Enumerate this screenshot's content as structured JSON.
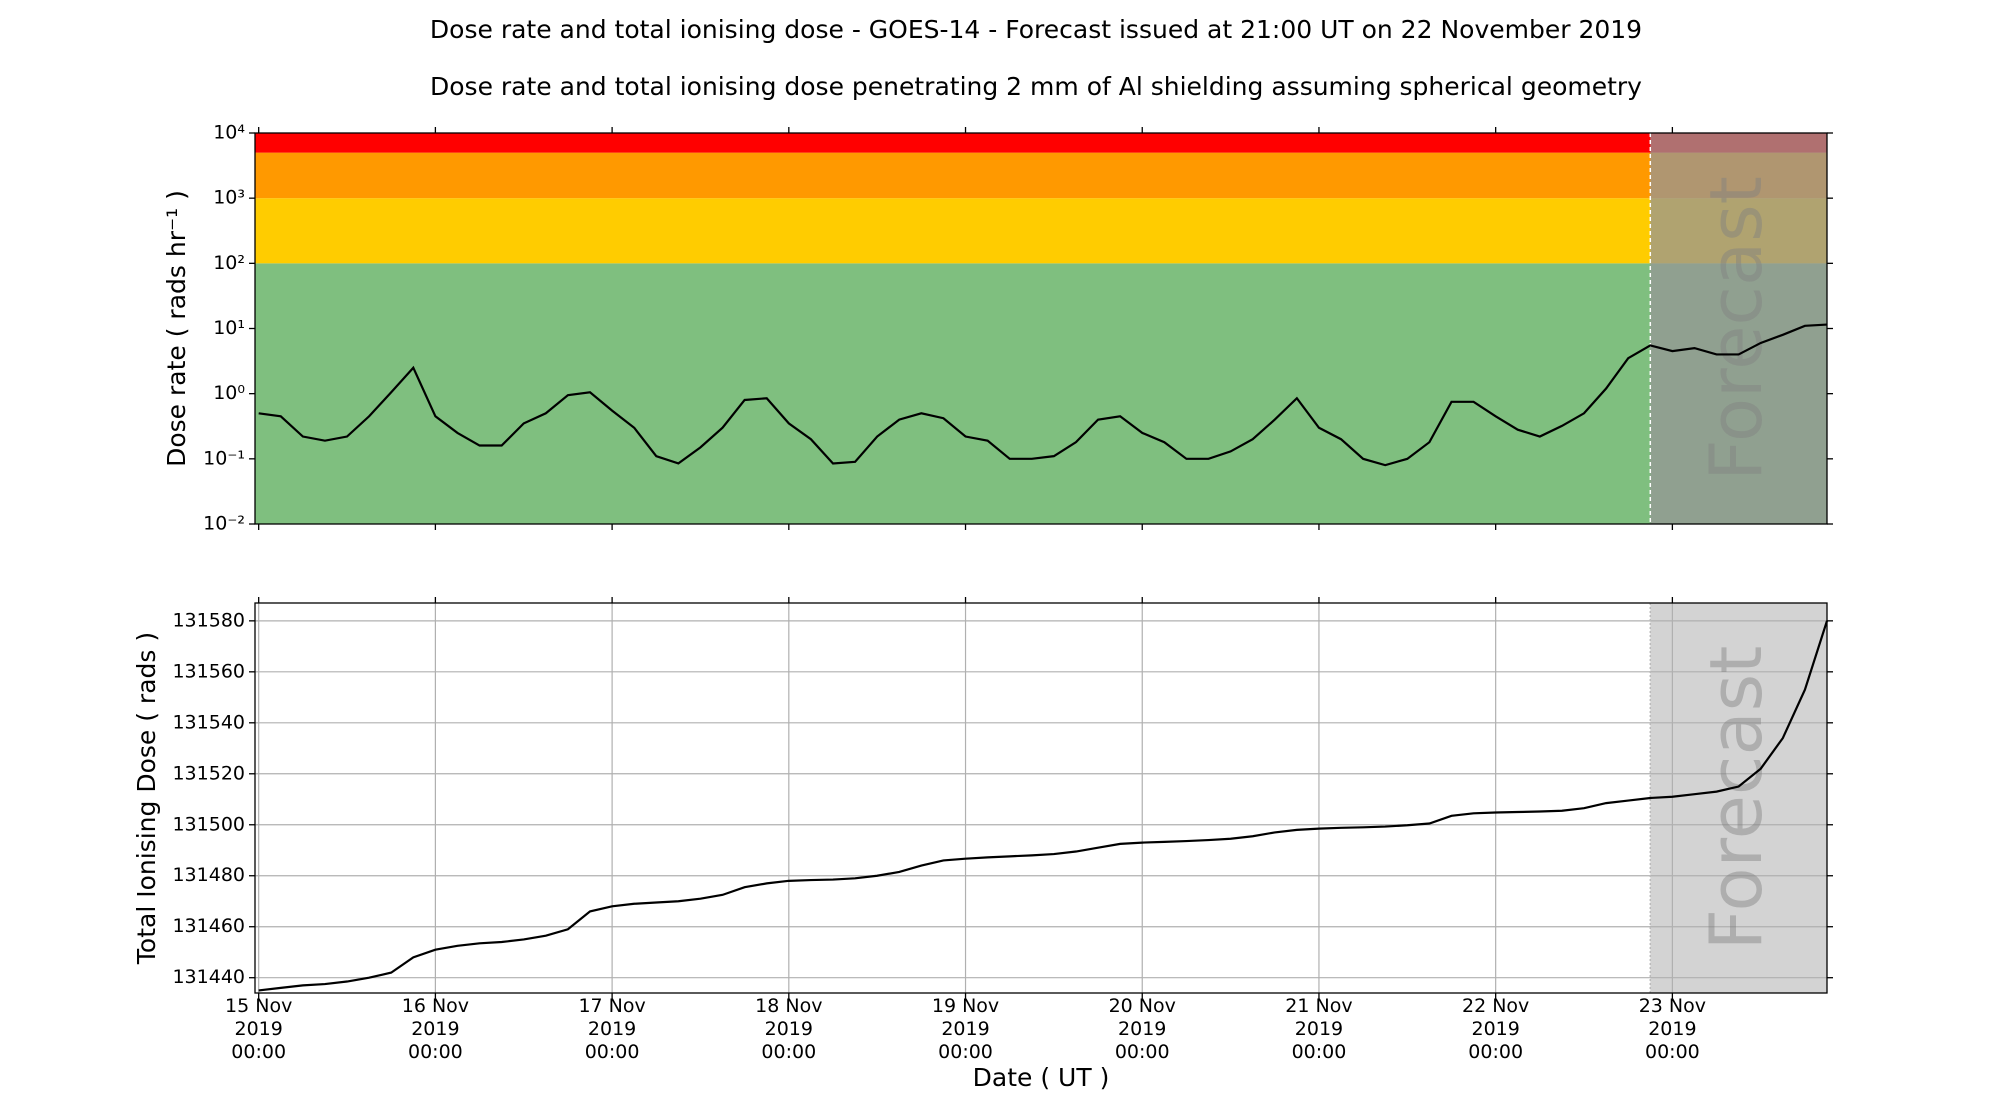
{
  "chart_data": [
    {
      "type": "line",
      "log": true,
      "title": "Dose rate and total ionising dose - GOES-14 - Forecast issued at 21:00 UT on 22 November 2019",
      "subtitle": "Dose rate and total ionising dose penetrating 2 mm of Al shielding assuming spherical geometry",
      "ylabel": "Dose rate ( rads hr⁻¹ )",
      "color": "#000000",
      "grid": false,
      "xlim": [
        "2019-11-14 23:30",
        "2019-11-23 21:00"
      ],
      "xticks": [
        "2019-11-15 00:00",
        "2019-11-16 00:00",
        "2019-11-17 00:00",
        "2019-11-18 00:00",
        "2019-11-19 00:00",
        "2019-11-20 00:00",
        "2019-11-21 00:00",
        "2019-11-22 00:00",
        "2019-11-23 00:00"
      ],
      "ylim": [
        0.01,
        10000
      ],
      "yticks": [
        {
          "value": 0.01,
          "label": "10⁻²"
        },
        {
          "value": 0.1,
          "label": "10⁻¹"
        },
        {
          "value": 1,
          "label": "10⁰"
        },
        {
          "value": 10,
          "label": "10¹"
        },
        {
          "value": 100,
          "label": "10²"
        },
        {
          "value": 1000,
          "label": "10³"
        },
        {
          "value": 10000,
          "label": "10⁴"
        }
      ],
      "bands": [
        {
          "from": 0.01,
          "to": 100,
          "color": "#7fbf7f"
        },
        {
          "from": 100,
          "to": 1000,
          "color": "#ffcc00"
        },
        {
          "from": 1000,
          "to": 5000,
          "color": "#ff9900"
        },
        {
          "from": 5000,
          "to": 10000,
          "color": "#ff0000"
        }
      ],
      "forecast": {
        "start": "2019-11-22 21:00",
        "label": "Forecast",
        "color": "rgba(150,150,150,0.75)"
      },
      "x": [
        "2019-11-15 00:00",
        "2019-11-15 03:00",
        "2019-11-15 06:00",
        "2019-11-15 09:00",
        "2019-11-15 12:00",
        "2019-11-15 15:00",
        "2019-11-15 18:00",
        "2019-11-15 21:00",
        "2019-11-16 00:00",
        "2019-11-16 03:00",
        "2019-11-16 06:00",
        "2019-11-16 09:00",
        "2019-11-16 12:00",
        "2019-11-16 15:00",
        "2019-11-16 18:00",
        "2019-11-16 21:00",
        "2019-11-17 00:00",
        "2019-11-17 03:00",
        "2019-11-17 06:00",
        "2019-11-17 09:00",
        "2019-11-17 12:00",
        "2019-11-17 15:00",
        "2019-11-17 18:00",
        "2019-11-17 21:00",
        "2019-11-18 00:00",
        "2019-11-18 03:00",
        "2019-11-18 06:00",
        "2019-11-18 09:00",
        "2019-11-18 12:00",
        "2019-11-18 15:00",
        "2019-11-18 18:00",
        "2019-11-18 21:00",
        "2019-11-19 00:00",
        "2019-11-19 03:00",
        "2019-11-19 06:00",
        "2019-11-19 09:00",
        "2019-11-19 12:00",
        "2019-11-19 15:00",
        "2019-11-19 18:00",
        "2019-11-19 21:00",
        "2019-11-20 00:00",
        "2019-11-20 03:00",
        "2019-11-20 06:00",
        "2019-11-20 09:00",
        "2019-11-20 12:00",
        "2019-11-20 15:00",
        "2019-11-20 18:00",
        "2019-11-20 21:00",
        "2019-11-21 00:00",
        "2019-11-21 03:00",
        "2019-11-21 06:00",
        "2019-11-21 09:00",
        "2019-11-21 12:00",
        "2019-11-21 15:00",
        "2019-11-21 18:00",
        "2019-11-21 21:00",
        "2019-11-22 00:00",
        "2019-11-22 03:00",
        "2019-11-22 06:00",
        "2019-11-22 09:00",
        "2019-11-22 12:00",
        "2019-11-22 15:00",
        "2019-11-22 18:00",
        "2019-11-22 21:00",
        "2019-11-23 00:00",
        "2019-11-23 03:00",
        "2019-11-23 06:00",
        "2019-11-23 09:00",
        "2019-11-23 12:00",
        "2019-11-23 15:00",
        "2019-11-23 18:00",
        "2019-11-23 21:00"
      ],
      "values": [
        0.5,
        0.45,
        0.22,
        0.19,
        0.22,
        0.45,
        1.05,
        2.5,
        0.45,
        0.25,
        0.16,
        0.16,
        0.35,
        0.5,
        0.95,
        1.05,
        0.55,
        0.3,
        0.11,
        0.085,
        0.15,
        0.3,
        0.8,
        0.85,
        0.35,
        0.2,
        0.085,
        0.09,
        0.22,
        0.4,
        0.5,
        0.42,
        0.22,
        0.19,
        0.1,
        0.1,
        0.11,
        0.18,
        0.4,
        0.45,
        0.25,
        0.18,
        0.1,
        0.1,
        0.13,
        0.2,
        0.4,
        0.85,
        0.3,
        0.2,
        0.1,
        0.08,
        0.1,
        0.18,
        0.75,
        0.75,
        0.45,
        0.28,
        0.22,
        0.32,
        0.5,
        1.2,
        3.5,
        5.5,
        4.5,
        5,
        4,
        4,
        6,
        8,
        11,
        11.5
      ]
    },
    {
      "type": "line",
      "log": false,
      "ylabel": "Total Ionising Dose ( rads )",
      "xlabel": "Date ( UT )",
      "color": "#000000",
      "grid": true,
      "xlim": [
        "2019-11-14 23:30",
        "2019-11-23 21:00"
      ],
      "xticks": [
        {
          "value": "2019-11-15 00:00",
          "label": [
            "15 Nov",
            "2019",
            "00:00"
          ]
        },
        {
          "value": "2019-11-16 00:00",
          "label": [
            "16 Nov",
            "2019",
            "00:00"
          ]
        },
        {
          "value": "2019-11-17 00:00",
          "label": [
            "17 Nov",
            "2019",
            "00:00"
          ]
        },
        {
          "value": "2019-11-18 00:00",
          "label": [
            "18 Nov",
            "2019",
            "00:00"
          ]
        },
        {
          "value": "2019-11-19 00:00",
          "label": [
            "19 Nov",
            "2019",
            "00:00"
          ]
        },
        {
          "value": "2019-11-20 00:00",
          "label": [
            "20 Nov",
            "2019",
            "00:00"
          ]
        },
        {
          "value": "2019-11-21 00:00",
          "label": [
            "21 Nov",
            "2019",
            "00:00"
          ]
        },
        {
          "value": "2019-11-22 00:00",
          "label": [
            "22 Nov",
            "2019",
            "00:00"
          ]
        },
        {
          "value": "2019-11-23 00:00",
          "label": [
            "23 Nov",
            "2019",
            "00:00"
          ]
        }
      ],
      "ylim": [
        131434,
        131587
      ],
      "yticks": [
        131440,
        131460,
        131480,
        131500,
        131520,
        131540,
        131560,
        131580
      ],
      "forecast": {
        "start": "2019-11-22 21:00",
        "label": "Forecast",
        "color": "#d3d3d3"
      },
      "x": [
        "2019-11-15 00:00",
        "2019-11-15 03:00",
        "2019-11-15 06:00",
        "2019-11-15 09:00",
        "2019-11-15 12:00",
        "2019-11-15 15:00",
        "2019-11-15 18:00",
        "2019-11-15 21:00",
        "2019-11-16 00:00",
        "2019-11-16 03:00",
        "2019-11-16 06:00",
        "2019-11-16 09:00",
        "2019-11-16 12:00",
        "2019-11-16 15:00",
        "2019-11-16 18:00",
        "2019-11-16 21:00",
        "2019-11-17 00:00",
        "2019-11-17 03:00",
        "2019-11-17 06:00",
        "2019-11-17 09:00",
        "2019-11-17 12:00",
        "2019-11-17 15:00",
        "2019-11-17 18:00",
        "2019-11-17 21:00",
        "2019-11-18 00:00",
        "2019-11-18 03:00",
        "2019-11-18 06:00",
        "2019-11-18 09:00",
        "2019-11-18 12:00",
        "2019-11-18 15:00",
        "2019-11-18 18:00",
        "2019-11-18 21:00",
        "2019-11-19 00:00",
        "2019-11-19 03:00",
        "2019-11-19 06:00",
        "2019-11-19 09:00",
        "2019-11-19 12:00",
        "2019-11-19 15:00",
        "2019-11-19 18:00",
        "2019-11-19 21:00",
        "2019-11-20 00:00",
        "2019-11-20 03:00",
        "2019-11-20 06:00",
        "2019-11-20 09:00",
        "2019-11-20 12:00",
        "2019-11-20 15:00",
        "2019-11-20 18:00",
        "2019-11-20 21:00",
        "2019-11-21 00:00",
        "2019-11-21 03:00",
        "2019-11-21 06:00",
        "2019-11-21 09:00",
        "2019-11-21 12:00",
        "2019-11-21 15:00",
        "2019-11-21 18:00",
        "2019-11-21 21:00",
        "2019-11-22 00:00",
        "2019-11-22 03:00",
        "2019-11-22 06:00",
        "2019-11-22 09:00",
        "2019-11-22 12:00",
        "2019-11-22 15:00",
        "2019-11-22 18:00",
        "2019-11-22 21:00",
        "2019-11-23 00:00",
        "2019-11-23 03:00",
        "2019-11-23 06:00",
        "2019-11-23 09:00",
        "2019-11-23 12:00",
        "2019-11-23 15:00",
        "2019-11-23 18:00",
        "2019-11-23 21:00"
      ],
      "values": [
        131435,
        131436,
        131437,
        131437.5,
        131438.5,
        131440,
        131442,
        131448,
        131451,
        131452.5,
        131453.5,
        131454,
        131455,
        131456.5,
        131459,
        131466,
        131468,
        131469,
        131469.5,
        131470,
        131471,
        131472.5,
        131475.5,
        131477,
        131478,
        131478.3,
        131478.5,
        131479,
        131480,
        131481.5,
        131484,
        131486,
        131486.7,
        131487.2,
        131487.6,
        131488,
        131488.5,
        131489.5,
        131491,
        131492.5,
        131493,
        131493.3,
        131493.6,
        131494,
        131494.5,
        131495.5,
        131497,
        131498,
        131498.5,
        131498.8,
        131499,
        131499.3,
        131499.8,
        131500.5,
        131503.5,
        131504.5,
        131504.8,
        131505,
        131505.2,
        131505.5,
        131506.5,
        131508.5,
        131509.5,
        131510.5,
        131511,
        131512,
        131513,
        131515,
        131522,
        131534,
        131553,
        131580
      ]
    }
  ]
}
